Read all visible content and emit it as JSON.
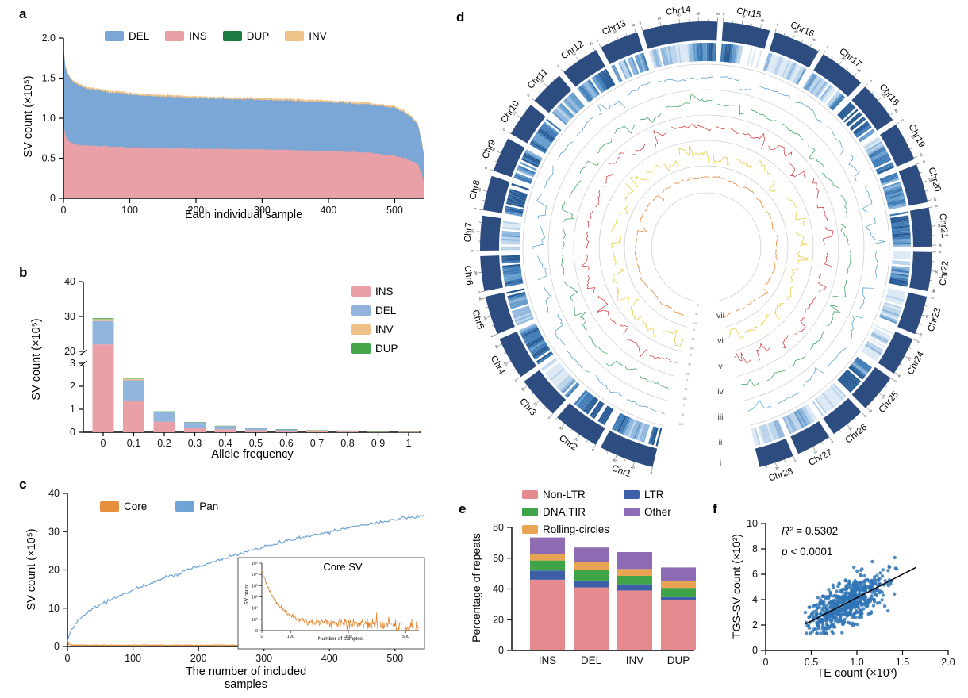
{
  "page": {
    "background": "#ffffff"
  },
  "chart_data": [
    {
      "id": "a",
      "panel_label": "a",
      "type": "area",
      "xlabel": "Each individual sample",
      "ylabel": "SV count (×10⁵)",
      "xlim": [
        0,
        545
      ],
      "ylim": [
        0,
        2.0
      ],
      "xticks": [
        0,
        100,
        200,
        300,
        400,
        500
      ],
      "yticks": [
        {
          "v": 0,
          "label": "0"
        },
        {
          "v": 0.5,
          "label": "0.5"
        },
        {
          "v": 1,
          "label": "1.0"
        },
        {
          "v": 1.5,
          "label": "1.5"
        },
        {
          "v": 2,
          "label": "2.0"
        }
      ],
      "legend": [
        {
          "label": "DEL",
          "color": "#7ba7d7"
        },
        {
          "label": "INS",
          "color": "#e9a0a6"
        },
        {
          "label": "DUP",
          "color": "#1b7a41"
        },
        {
          "label": "INV",
          "color": "#efc289"
        }
      ],
      "series_x": [
        0,
        3,
        8,
        15,
        30,
        60,
        120,
        200,
        300,
        400,
        460,
        500,
        515,
        525,
        535,
        540,
        545
      ],
      "ins_top": [
        0.92,
        0.78,
        0.71,
        0.68,
        0.66,
        0.65,
        0.63,
        0.62,
        0.61,
        0.59,
        0.57,
        0.53,
        0.5,
        0.47,
        0.42,
        0.33,
        0.15
      ],
      "total_top": [
        1.88,
        1.63,
        1.52,
        1.45,
        1.38,
        1.33,
        1.28,
        1.25,
        1.23,
        1.2,
        1.17,
        1.13,
        1.07,
        1.01,
        0.92,
        0.73,
        0.5
      ],
      "inv_band": 0.022
    },
    {
      "id": "b",
      "panel_label": "b",
      "type": "bar",
      "xlabel": "Allele frequency",
      "ylabel": "SV count (×10⁵)",
      "categories": [
        "0",
        "0.1",
        "0.2",
        "0.3",
        "0.4",
        "0.5",
        "0.6",
        "0.7",
        "0.8",
        "0.9",
        "1"
      ],
      "broken_axis": {
        "lower_ticks": [
          0,
          1,
          2,
          3
        ],
        "upper_ticks": [
          20,
          30,
          40
        ],
        "lower_range": [
          0,
          3
        ],
        "upper_range": [
          20,
          40
        ]
      },
      "series": [
        {
          "name": "INS",
          "color": "#e9a0a6",
          "values": [
            22,
            1.38,
            0.46,
            0.2,
            0.13,
            0.09,
            0.06,
            0.04,
            0.03,
            0.012,
            0.008
          ]
        },
        {
          "name": "DEL",
          "color": "#92b5dd",
          "values": [
            6.7,
            0.88,
            0.42,
            0.23,
            0.14,
            0.09,
            0.07,
            0.045,
            0.04,
            0.02,
            0.006
          ]
        },
        {
          "name": "INV",
          "color": "#eec189",
          "values": [
            0.55,
            0.05,
            0.02,
            0.012,
            0.008,
            0.005,
            0.004,
            0.003,
            0.002,
            0.001,
            0.001
          ]
        },
        {
          "name": "DUP",
          "color": "#45a348",
          "values": [
            0.25,
            0.02,
            0.008,
            0.005,
            0.004,
            0.003,
            0.002,
            0.002,
            0.001,
            0.001,
            0
          ]
        }
      ],
      "legend_order": [
        "INS",
        "DEL",
        "INV",
        "DUP"
      ]
    },
    {
      "id": "c",
      "panel_label": "c",
      "type": "line",
      "xlabel": "The number of included samples",
      "ylabel": "SV count (×10⁵)",
      "xlim": [
        0,
        545
      ],
      "ylim": [
        0,
        40
      ],
      "xticks": [
        0,
        100,
        200,
        300,
        400,
        500
      ],
      "yticks": [
        0,
        10,
        20,
        30,
        40
      ],
      "legend": [
        {
          "label": "Core",
          "color": "#e68f3c"
        },
        {
          "label": "Pan",
          "color": "#6fa3d3"
        }
      ],
      "pan_x": [
        0,
        5,
        10,
        20,
        40,
        70,
        100,
        150,
        200,
        250,
        300,
        350,
        400,
        450,
        500,
        545
      ],
      "pan_y": [
        1.5,
        4.0,
        5.5,
        7.5,
        10.0,
        12.5,
        14.8,
        18.0,
        21.0,
        23.6,
        26.0,
        28.2,
        30.0,
        31.6,
        33.2,
        34.4
      ],
      "core_x": [
        0,
        1,
        3,
        6,
        20,
        545
      ],
      "core_y": [
        1.5,
        0.8,
        0.5,
        0.4,
        0.35,
        0.3
      ],
      "inset": {
        "title": "Core SV",
        "xlabel": "Number of samples",
        "ylabel": "SV count",
        "xticks": [
          0,
          100,
          300,
          500
        ],
        "yticks": [
          "10⁵",
          "10⁴",
          "10³",
          "10²",
          "10¹",
          "10⁰",
          "0"
        ],
        "color": "#e2832c"
      }
    },
    {
      "id": "d",
      "panel_label": "d",
      "type": "circos",
      "chromosomes": [
        "Chr1",
        "Chr2",
        "Chr3",
        "Chr4",
        "Chr5",
        "Chr6",
        "Chr7",
        "Chr8",
        "Chr9",
        "Chr10",
        "Chr11",
        "Chr12",
        "Chr13",
        "Chr14",
        "Chr15",
        "Chr16",
        "Chr17",
        "Chr18",
        "Chr19",
        "Chr20",
        "Chr21",
        "Chr22",
        "Chr23",
        "Chr24",
        "Chr25",
        "Chr26",
        "Chr27",
        "Chr28"
      ],
      "spans": [
        15,
        13,
        12,
        12,
        11,
        10,
        10,
        10,
        10,
        10,
        10,
        11,
        11,
        20,
        13,
        13,
        13,
        12,
        11,
        11,
        11,
        11,
        11,
        11,
        11,
        10,
        10,
        10
      ],
      "ring_color": "#2d4d80",
      "ruler_labels": [
        "0",
        "20",
        "40",
        "60",
        "80",
        "100",
        "120"
      ],
      "tracks": [
        {
          "label": "i",
          "kind": "chromosome-ring",
          "color": "#2d4d80"
        },
        {
          "label": "ii",
          "kind": "heatmap",
          "palette": [
            "#ffffff",
            "#dce9f5",
            "#b9d3ea",
            "#8fb7dd",
            "#639ccc",
            "#3d7ab6",
            "#265a94"
          ]
        },
        {
          "label": "iii",
          "kind": "line",
          "color": "#4a97c9"
        },
        {
          "label": "iv",
          "kind": "line",
          "color": "#2f9e50"
        },
        {
          "label": "v",
          "kind": "line",
          "color": "#cf2f2f"
        },
        {
          "label": "vi",
          "kind": "line",
          "color": "#e7c832"
        },
        {
          "label": "vii",
          "kind": "line",
          "color": "#e27d25"
        }
      ]
    },
    {
      "id": "e",
      "panel_label": "e",
      "type": "bar",
      "ylabel": "Percentage of repeats",
      "categories": [
        "INS",
        "DEL",
        "INV",
        "DUP"
      ],
      "yticks": [
        0,
        20,
        40,
        60,
        80
      ],
      "ylim": [
        0,
        80
      ],
      "series": [
        {
          "name": "Non-LTR",
          "color": "#e58b8f",
          "values": [
            46,
            41,
            39,
            32.5
          ]
        },
        {
          "name": "LTR",
          "color": "#3d5fa7",
          "values": [
            6,
            4.5,
            4,
            2.2
          ]
        },
        {
          "name": "DNA:TIR",
          "color": "#3fa347",
          "values": [
            6.5,
            7,
            5.5,
            6
          ]
        },
        {
          "name": "Rolling-circles",
          "color": "#e8a353",
          "values": [
            4,
            5,
            4.5,
            4.3
          ]
        },
        {
          "name": "Other",
          "color": "#8e6cb4",
          "values": [
            11,
            9.5,
            11,
            9
          ]
        }
      ],
      "legend_columns": [
        [
          "Non-LTR",
          "DNA:TIR",
          "Rolling-circles"
        ],
        [
          "LTR",
          "Other"
        ]
      ]
    },
    {
      "id": "f",
      "panel_label": "f",
      "type": "scatter",
      "xlabel": "TE count (×10³)",
      "ylabel": "TGS-SV count (×10³)",
      "xlim": [
        0,
        2.0
      ],
      "ylim": [
        0,
        10
      ],
      "xticks": [
        {
          "v": 0,
          "label": "0"
        },
        {
          "v": 0.5,
          "label": "0.5"
        },
        {
          "v": 1,
          "label": "1.0"
        },
        {
          "v": 1.5,
          "label": "1.5"
        },
        {
          "v": 2,
          "label": "2.0"
        }
      ],
      "yticks": [
        0,
        2,
        4,
        6,
        8,
        10
      ],
      "annotations": [
        {
          "label": "R²",
          "value": "= 0.5302"
        },
        {
          "label": "p",
          "value": "< 0.0001"
        }
      ],
      "point_color": "#2e74b5",
      "points_summary": {
        "n": 620,
        "x_range": [
          0.43,
          1.67
        ],
        "y_range": [
          1.35,
          8.35
        ],
        "x_mean": 0.88,
        "x_sd": 0.21,
        "slope": 3.69,
        "intercept": 0.46,
        "noise_sd": 0.8
      },
      "trendline": {
        "x1": 0.43,
        "y1": 2.05,
        "x2": 1.65,
        "y2": 6.55,
        "color": "#000000"
      }
    }
  ]
}
